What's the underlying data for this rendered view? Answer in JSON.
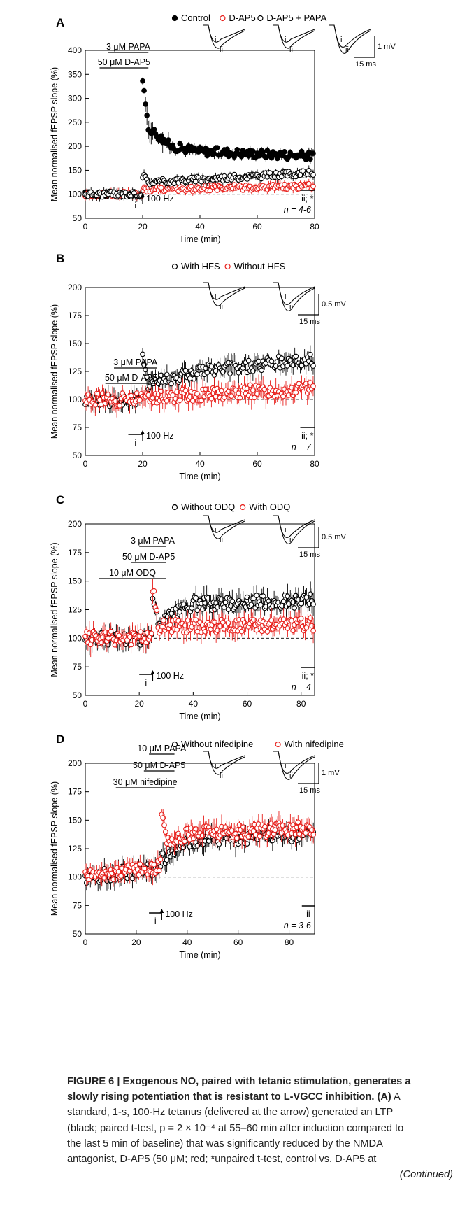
{
  "colors": {
    "control": "#000000",
    "treated": "#e8201c",
    "axis": "#000000",
    "caption": "#222222"
  },
  "chart_data": [
    {
      "panel": "A",
      "type": "scatter",
      "xlabel": "Time (min)",
      "ylabel": "Mean normalised fEPSP slope (%)",
      "xlim": [
        0,
        80
      ],
      "ylim": [
        50,
        400
      ],
      "xticks": [
        0,
        20,
        40,
        60,
        80
      ],
      "yticks": [
        50,
        100,
        150,
        200,
        250,
        300,
        350,
        400
      ],
      "n_label": "n = 4-6",
      "stim_label": "100 Hz",
      "stim_time": 20,
      "drugs": [
        {
          "label": "3 μM PAPA",
          "start": 8,
          "end": 22
        },
        {
          "label": "50 μM D-AP5",
          "start": 5,
          "end": 22
        }
      ],
      "windows": [
        {
          "label": "i",
          "start": 15,
          "end": 20
        },
        {
          "label": "ii; *",
          "start": 75,
          "end": 80
        }
      ],
      "legend": [
        "Control",
        "D-AP5",
        "D-AP5 + PAPA"
      ],
      "series": [
        {
          "name": "Control",
          "style": "filled",
          "segments": [
            [
              0,
              20,
              100,
              100
            ],
            [
              20,
              22,
              330,
              240
            ],
            [
              22,
              30,
              240,
              200
            ],
            [
              30,
              40,
              200,
              190
            ],
            [
              40,
              80,
              190,
              180
            ]
          ]
        },
        {
          "name": "D-AP5",
          "style": "open-red",
          "segments": [
            [
              0,
              20,
              100,
              100
            ],
            [
              20,
              22,
              108,
              110
            ],
            [
              22,
              80,
              110,
              117
            ]
          ]
        },
        {
          "name": "D-AP5 + PAPA",
          "style": "open-black",
          "segments": [
            [
              0,
              20,
              100,
              100
            ],
            [
              20,
              22,
              140,
              125
            ],
            [
              22,
              80,
              125,
              145
            ]
          ]
        }
      ],
      "traces": {
        "scale_y": "1 mV",
        "scale_x": "15 ms"
      }
    },
    {
      "panel": "B",
      "type": "scatter",
      "xlabel": "Time (min)",
      "ylabel": "Mean normalised fEPSP slope (%)",
      "xlim": [
        0,
        80
      ],
      "ylim": [
        50,
        200
      ],
      "xticks": [
        0,
        20,
        40,
        60,
        80
      ],
      "yticks": [
        50,
        75,
        100,
        125,
        150,
        175,
        200
      ],
      "n_label": "n = 7",
      "stim_label": "100 Hz",
      "stim_time": 20,
      "drugs": [
        {
          "label": "3 μM PAPA",
          "start": 10,
          "end": 25
        },
        {
          "label": "50 μM D-AP5",
          "start": 7,
          "end": 25
        }
      ],
      "windows": [
        {
          "label": "i",
          "start": 15,
          "end": 20
        },
        {
          "label": "ii; *",
          "start": 75,
          "end": 80
        }
      ],
      "legend": [
        "With HFS",
        "Without HFS"
      ],
      "series": [
        {
          "name": "With HFS",
          "style": "open-black",
          "segments": [
            [
              0,
              20,
              100,
              100
            ],
            [
              20,
              22,
              135,
              120
            ],
            [
              22,
              40,
              115,
              125
            ],
            [
              40,
              80,
              125,
              136
            ]
          ]
        },
        {
          "name": "Without HFS",
          "style": "open-red",
          "segments": [
            [
              0,
              20,
              100,
              100
            ],
            [
              20,
              80,
              102,
              110
            ]
          ]
        }
      ],
      "traces": {
        "scale_y": "0.5 mV",
        "scale_x": "15 ms"
      }
    },
    {
      "panel": "C",
      "type": "scatter",
      "xlabel": "Time (min)",
      "ylabel": "Mean normalised fEPSP slope (%)",
      "xlim": [
        0,
        85
      ],
      "ylim": [
        50,
        200
      ],
      "xticks": [
        0,
        20,
        40,
        60,
        80
      ],
      "yticks": [
        50,
        75,
        100,
        125,
        150,
        175,
        200
      ],
      "n_label": "n = 4",
      "stim_label": "100 Hz",
      "stim_time": 25,
      "drugs": [
        {
          "label": "3 μM PAPA",
          "start": 20,
          "end": 30
        },
        {
          "label": "50 μM D-AP5",
          "start": 17,
          "end": 30
        },
        {
          "label": "10 μM ODQ",
          "start": 5,
          "end": 30
        }
      ],
      "windows": [
        {
          "label": "i",
          "start": 20,
          "end": 25
        },
        {
          "label": "ii; *",
          "start": 80,
          "end": 85
        }
      ],
      "legend": [
        "Without ODQ",
        "With ODQ"
      ],
      "series": [
        {
          "name": "Without ODQ",
          "style": "open-black",
          "segments": [
            [
              0,
              25,
              100,
              100
            ],
            [
              25,
              27,
              135,
              112
            ],
            [
              27,
              40,
              112,
              130
            ],
            [
              40,
              85,
              130,
              133
            ]
          ]
        },
        {
          "name": "With ODQ",
          "style": "open-red",
          "segments": [
            [
              0,
              25,
              100,
              100
            ],
            [
              25,
              27,
              145,
              110
            ],
            [
              27,
              85,
              110,
              112
            ]
          ]
        }
      ],
      "traces": {
        "scale_y": "0.5 mV",
        "scale_x": "15 ms"
      }
    },
    {
      "panel": "D",
      "type": "scatter",
      "xlabel": "Time (min)",
      "ylabel": "Mean normalised fEPSP slope (%)",
      "xlim": [
        0,
        90
      ],
      "ylim": [
        50,
        200
      ],
      "xticks": [
        0,
        20,
        40,
        60,
        80
      ],
      "yticks": [
        50,
        75,
        100,
        125,
        150,
        175,
        200
      ],
      "n_label": "n = 3-6",
      "stim_label": "100 Hz",
      "stim_time": 30,
      "drugs": [
        {
          "label": "10 μM PAPA",
          "start": 25,
          "end": 35
        },
        {
          "label": "50 μM D-AP5",
          "start": 23,
          "end": 35
        },
        {
          "label": "30 μM nifedipine",
          "start": 12,
          "end": 35
        }
      ],
      "windows": [
        {
          "label": "i",
          "start": 25,
          "end": 30
        },
        {
          "label": "ii",
          "start": 85,
          "end": 90
        }
      ],
      "legend": [
        "Without nifedipine",
        "With nifedipine"
      ],
      "series": [
        {
          "name": "Without nifedipine",
          "style": "open-black",
          "segments": [
            [
              0,
              30,
              100,
              108
            ],
            [
              30,
              32,
              120,
              115
            ],
            [
              32,
              40,
              120,
              130
            ],
            [
              40,
              90,
              132,
              138
            ]
          ]
        },
        {
          "name": "With nifedipine",
          "style": "open-red",
          "segments": [
            [
              0,
              30,
              100,
              110
            ],
            [
              30,
              32,
              160,
              125
            ],
            [
              32,
              40,
              130,
              138
            ],
            [
              40,
              90,
              138,
              143
            ]
          ]
        }
      ],
      "traces": {
        "scale_y": "1 mV",
        "scale_x": "15 ms"
      }
    }
  ],
  "caption": {
    "line1": "FIGURE 6 | Exogenous NO, paired with tetanic stimulation, generates a",
    "line2a": "slowly rising potentiation that is resistant to L-VGCC inhibition. (A)",
    "line2b": " A",
    "line3": "standard, 1-s, 100-Hz tetanus (delivered at the arrow) generated an LTP",
    "line4": "(black; paired t-test, p = 2 × 10⁻⁴ at 55–60 min after induction compared to",
    "line5": "the last 5 min of baseline) that was significantly reduced by the NMDA",
    "line6": "antagonist, D-AP5 (50 μM; red; *unpaired t-test, control vs. D-AP5 at",
    "continued": "(Continued)"
  }
}
